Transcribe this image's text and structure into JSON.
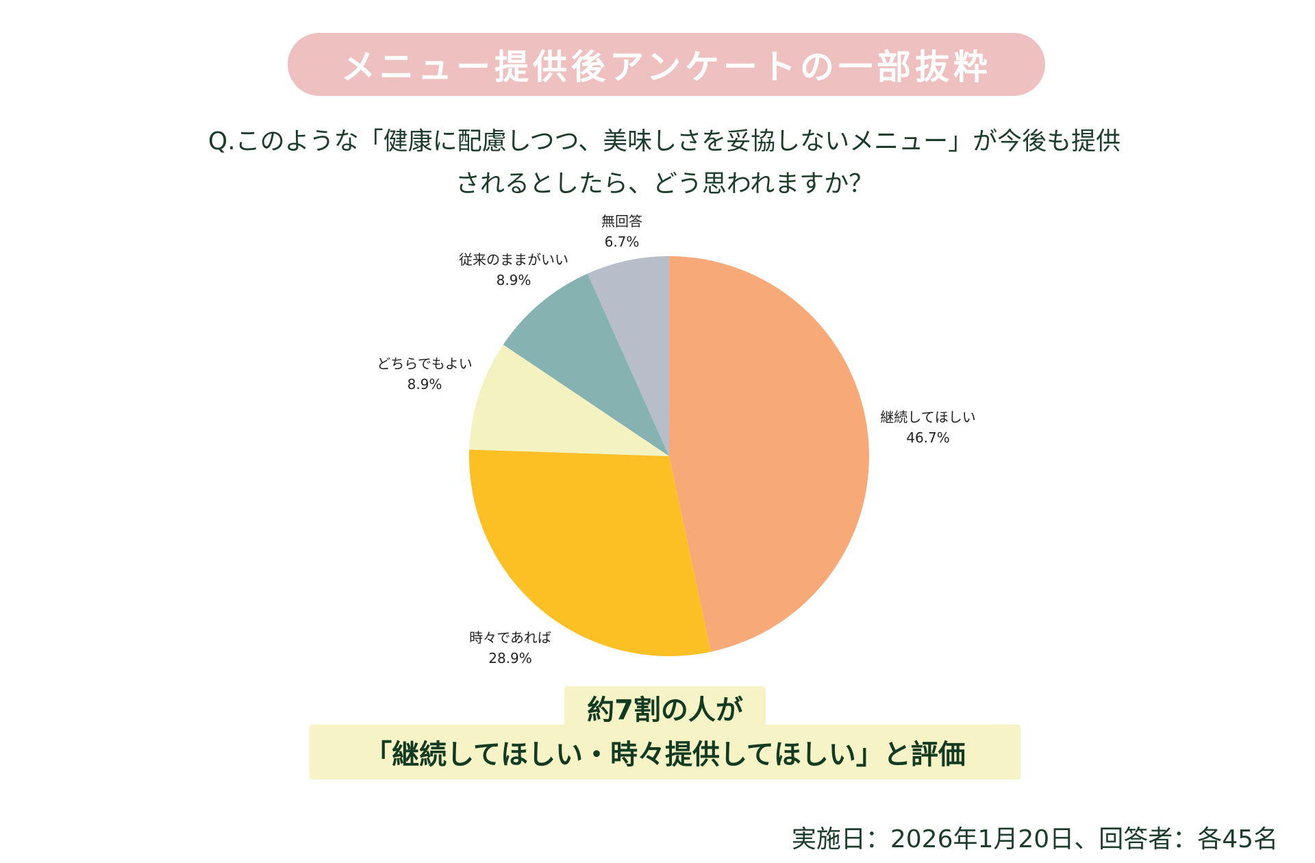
{
  "header": {
    "title": "メニュー提供後アンケートの一部抜粋"
  },
  "question": {
    "line1": "Q.このような「健康に配慮しつつ、美味しさを妥協しないメニュー」が今後も提供",
    "line2": "されるとしたら、どう思われますか？"
  },
  "chart_data": {
    "type": "pie",
    "start_angle_deg": 0,
    "direction": "clockwise",
    "slices": [
      {
        "label": "継続してほしい",
        "value": 46.7,
        "value_label": "46.7%",
        "color": "#f7a978"
      },
      {
        "label": "時々であれば",
        "value": 28.9,
        "value_label": "28.9%",
        "color": "#fcbf24"
      },
      {
        "label": "どちらでもよい",
        "value": 8.9,
        "value_label": "8.9%",
        "color": "#f5f2c2"
      },
      {
        "label": "従来のままがいい",
        "value": 8.9,
        "value_label": "8.9%",
        "color": "#86b2b2"
      },
      {
        "label": "無回答",
        "value": 6.7,
        "value_label": "6.7%",
        "color": "#b8bec9"
      }
    ]
  },
  "highlight": {
    "line1": "約7割の人が",
    "line2": "「継続してほしい・時々提供してほしい」と評価"
  },
  "footnote": "実施日：2026年1月20日、回答者：各45名"
}
